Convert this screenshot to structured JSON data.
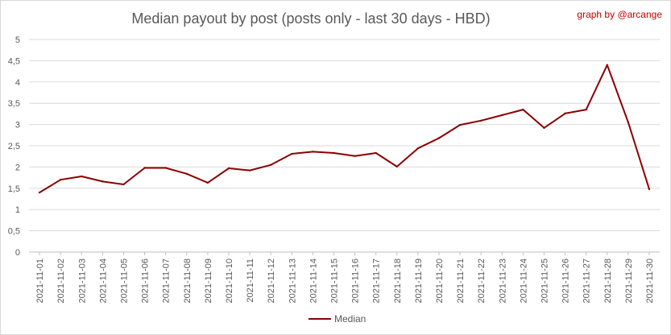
{
  "chart_data": {
    "type": "line",
    "title": "Median payout by post (posts only - last 30 days - HBD)",
    "credit": "graph by @arcange",
    "xlabel": "",
    "ylabel": "",
    "ylim": [
      0,
      5
    ],
    "yticks": [
      "0",
      "0,5",
      "1",
      "1,5",
      "2",
      "2,5",
      "3",
      "3,5",
      "4",
      "4,5",
      "5"
    ],
    "grid": true,
    "legend_position": "bottom",
    "categories": [
      "2021-11-01",
      "2021-11-02",
      "2021-11-03",
      "2021-11-04",
      "2021-11-05",
      "2021-11-06",
      "2021-11-07",
      "2021-11-08",
      "2021-11-09",
      "2021-11-10",
      "2021-11-11",
      "2021-11-12",
      "2021-11-13",
      "2021-11-14",
      "2021-11-15",
      "2021-11-16",
      "2021-11-17",
      "2021-11-18",
      "2021-11-19",
      "2021-11-20",
      "2021-11-21",
      "2021-11-22",
      "2021-11-23",
      "2021-11-24",
      "2021-11-25",
      "2021-11-26",
      "2021-11-27",
      "2021-11-28",
      "2021-11-29",
      "2021-11-30"
    ],
    "series": [
      {
        "name": "Median",
        "color": "#8b0000",
        "values": [
          1.4,
          1.7,
          1.78,
          1.66,
          1.59,
          1.98,
          1.98,
          1.84,
          1.63,
          1.97,
          1.92,
          2.05,
          2.31,
          2.36,
          2.33,
          2.26,
          2.33,
          2.01,
          2.44,
          2.68,
          2.99,
          3.09,
          3.22,
          3.35,
          2.92,
          3.26,
          3.35,
          4.4,
          3.05,
          1.48
        ]
      }
    ]
  }
}
